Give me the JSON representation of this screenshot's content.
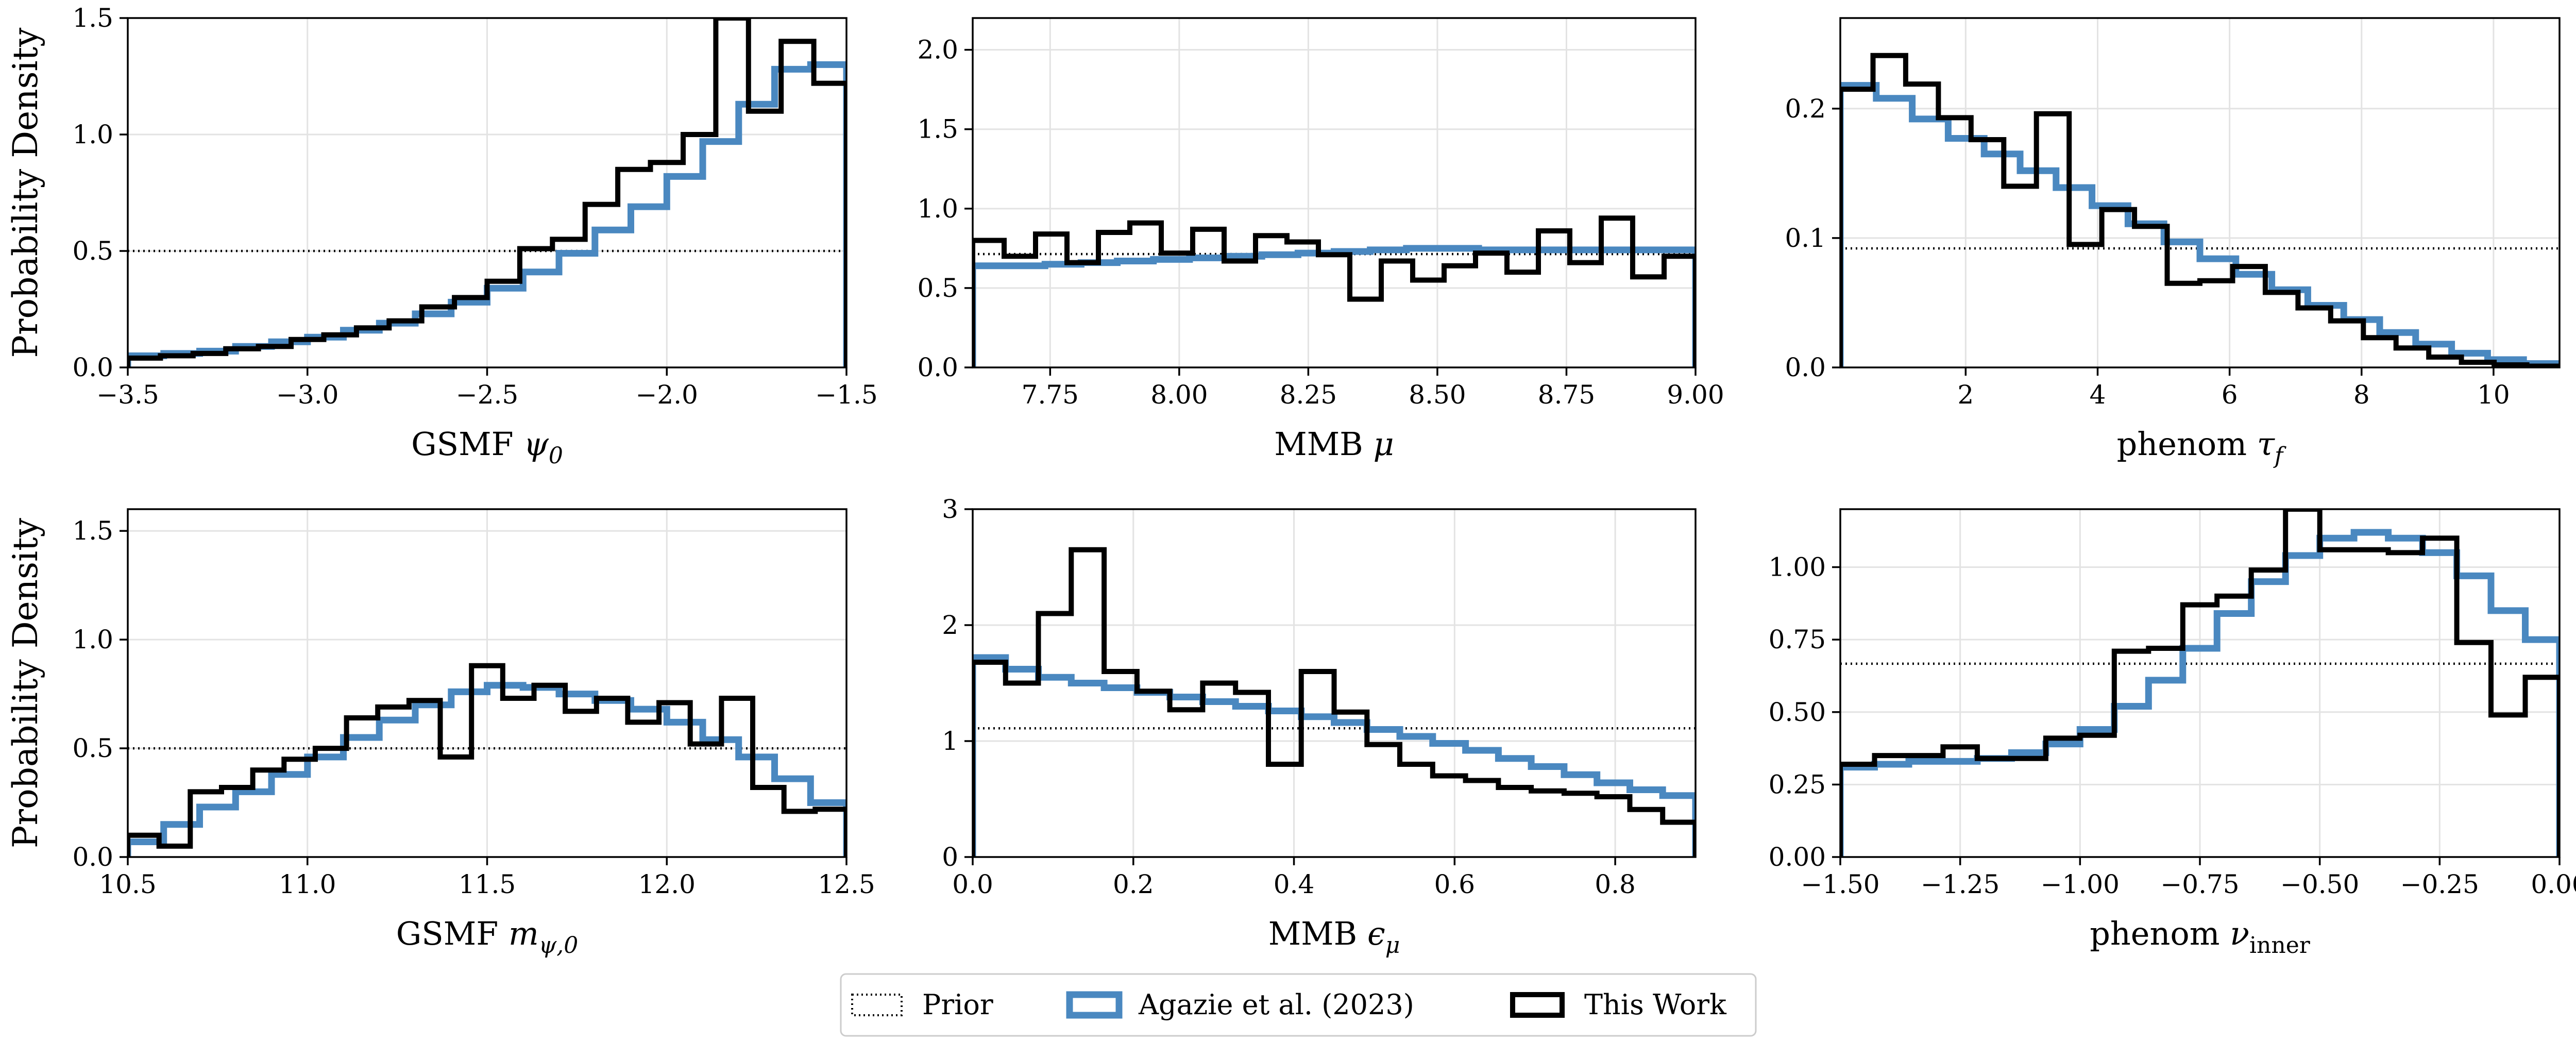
{
  "figure": {
    "ylabel": "Probability Density",
    "colors": {
      "prior": "#000000",
      "agazie": "#4a88c0",
      "thiswork": "#000000"
    }
  },
  "legend": {
    "placement": "bottom-center",
    "items": [
      {
        "label": "Prior",
        "style": "dotted"
      },
      {
        "label": "Agazie et al. (2023)",
        "color": "#4a88c0"
      },
      {
        "label": "This Work",
        "color": "#000000"
      }
    ]
  },
  "chart_data": [
    {
      "type": "histogram",
      "xlabel": "GSMF ψ0",
      "xlabel_base": "GSMF ",
      "xlabel_sym": "ψ",
      "xlabel_sub": "0",
      "ylabel": "Probability Density",
      "xlim": [
        -3.5,
        -1.5
      ],
      "ylim": [
        0,
        1.5
      ],
      "xticks": [
        -3.5,
        -3.0,
        -2.5,
        -2.0,
        -1.5
      ],
      "xtick_labels": [
        "−3.5",
        "−3.0",
        "−2.5",
        "−2.0",
        "−1.5"
      ],
      "yticks": [
        0,
        0.5,
        1.0,
        1.5
      ],
      "ytick_labels": [
        "0.0",
        "0.5",
        "1.0",
        "1.5"
      ],
      "prior": 0.5,
      "series": [
        {
          "name": "Agazie et al. (2023)",
          "edges": [
            -3.5,
            -1.5
          ],
          "values": [
            0.05,
            0.06,
            0.07,
            0.09,
            0.11,
            0.13,
            0.16,
            0.19,
            0.23,
            0.28,
            0.34,
            0.41,
            0.49,
            0.59,
            0.69,
            0.82,
            0.97,
            1.13,
            1.28,
            1.3
          ]
        },
        {
          "name": "This Work",
          "edges": [
            -3.5,
            -1.5
          ],
          "values": [
            0.04,
            0.05,
            0.06,
            0.08,
            0.09,
            0.12,
            0.14,
            0.17,
            0.2,
            0.26,
            0.3,
            0.37,
            0.51,
            0.55,
            0.7,
            0.85,
            0.88,
            1.0,
            1.5,
            1.1,
            1.4,
            1.22
          ]
        }
      ]
    },
    {
      "type": "histogram",
      "xlabel": "MMB μ",
      "xlabel_base": "MMB ",
      "xlabel_sym": "μ",
      "xlabel_sub": "",
      "ylabel": "",
      "xlim": [
        7.6,
        9.0
      ],
      "ylim": [
        0,
        2.2
      ],
      "xticks": [
        7.75,
        8.0,
        8.25,
        8.5,
        8.75,
        9.0
      ],
      "xtick_labels": [
        "7.75",
        "8.00",
        "8.25",
        "8.50",
        "8.75",
        "9.00"
      ],
      "yticks": [
        0,
        0.5,
        1.0,
        1.5,
        2.0
      ],
      "ytick_labels": [
        "0.0",
        "0.5",
        "1.0",
        "1.5",
        "2.0"
      ],
      "prior": 0.714,
      "series": [
        {
          "name": "Agazie et al. (2023)",
          "edges": [
            7.6,
            9.0
          ],
          "values": [
            0.64,
            0.64,
            0.65,
            0.66,
            0.67,
            0.68,
            0.69,
            0.7,
            0.71,
            0.72,
            0.73,
            0.74,
            0.75,
            0.75,
            0.74,
            0.74,
            0.74,
            0.74,
            0.74,
            0.74
          ]
        },
        {
          "name": "This Work",
          "edges": [
            7.6,
            9.0
          ],
          "values": [
            0.8,
            0.7,
            0.84,
            0.66,
            0.85,
            0.91,
            0.72,
            0.87,
            0.67,
            0.83,
            0.79,
            0.71,
            0.43,
            0.67,
            0.55,
            0.64,
            0.72,
            0.6,
            0.86,
            0.66,
            0.94,
            0.57,
            0.7
          ]
        }
      ]
    },
    {
      "type": "histogram",
      "xlabel": "phenom τf",
      "xlabel_base": "phenom ",
      "xlabel_sym": "τ",
      "xlabel_sub": "f",
      "ylabel": "",
      "xlim": [
        0.1,
        11.0
      ],
      "ylim": [
        0,
        0.27
      ],
      "xticks": [
        2,
        4,
        6,
        8,
        10
      ],
      "xtick_labels": [
        "2",
        "4",
        "6",
        "8",
        "10"
      ],
      "yticks": [
        0,
        0.1,
        0.2
      ],
      "ytick_labels": [
        "0.0",
        "0.1",
        "0.2"
      ],
      "prior": 0.092,
      "series": [
        {
          "name": "Agazie et al. (2023)",
          "edges": [
            0.1,
            11.0
          ],
          "values": [
            0.218,
            0.208,
            0.192,
            0.177,
            0.165,
            0.152,
            0.139,
            0.125,
            0.111,
            0.097,
            0.084,
            0.072,
            0.06,
            0.048,
            0.037,
            0.027,
            0.018,
            0.011,
            0.006,
            0.003
          ]
        },
        {
          "name": "This Work",
          "edges": [
            0.1,
            11.0
          ],
          "values": [
            0.215,
            0.241,
            0.219,
            0.193,
            0.176,
            0.14,
            0.196,
            0.095,
            0.122,
            0.109,
            0.065,
            0.067,
            0.078,
            0.058,
            0.046,
            0.036,
            0.023,
            0.015,
            0.008,
            0.004,
            0.002,
            0.001
          ]
        }
      ]
    },
    {
      "type": "histogram",
      "xlabel": "GSMF mψ,0",
      "xlabel_base": "GSMF ",
      "xlabel_sym": "m",
      "xlabel_sub": "ψ,0",
      "ylabel": "Probability Density",
      "xlim": [
        10.5,
        12.5
      ],
      "ylim": [
        0,
        1.6
      ],
      "xticks": [
        10.5,
        11.0,
        11.5,
        12.0,
        12.5
      ],
      "xtick_labels": [
        "10.5",
        "11.0",
        "11.5",
        "12.0",
        "12.5"
      ],
      "yticks": [
        0,
        0.5,
        1.0,
        1.5
      ],
      "ytick_labels": [
        "0.0",
        "0.5",
        "1.0",
        "1.5"
      ],
      "prior": 0.5,
      "series": [
        {
          "name": "Agazie et al. (2023)",
          "edges": [
            10.5,
            12.5
          ],
          "values": [
            0.07,
            0.15,
            0.23,
            0.3,
            0.38,
            0.46,
            0.55,
            0.63,
            0.7,
            0.76,
            0.79,
            0.78,
            0.75,
            0.72,
            0.68,
            0.62,
            0.54,
            0.46,
            0.36,
            0.25
          ]
        },
        {
          "name": "This Work",
          "edges": [
            10.5,
            12.5
          ],
          "values": [
            0.1,
            0.05,
            0.3,
            0.32,
            0.4,
            0.45,
            0.5,
            0.64,
            0.69,
            0.72,
            0.46,
            0.88,
            0.73,
            0.79,
            0.67,
            0.73,
            0.62,
            0.71,
            0.52,
            0.73,
            0.32,
            0.21,
            0.22
          ]
        }
      ]
    },
    {
      "type": "histogram",
      "xlabel": "MMB εμ",
      "xlabel_base": "MMB ",
      "xlabel_sym": "ϵ",
      "xlabel_sub": "μ",
      "ylabel": "",
      "xlim": [
        0.0,
        0.9
      ],
      "ylim": [
        0,
        3.0
      ],
      "xticks": [
        0.0,
        0.2,
        0.4,
        0.6,
        0.8
      ],
      "xtick_labels": [
        "0.0",
        "0.2",
        "0.4",
        "0.6",
        "0.8"
      ],
      "yticks": [
        0,
        1,
        2,
        3
      ],
      "ytick_labels": [
        "0",
        "1",
        "2",
        "3"
      ],
      "prior": 1.11,
      "series": [
        {
          "name": "Agazie et al. (2023)",
          "edges": [
            0.0,
            0.9
          ],
          "values": [
            1.72,
            1.62,
            1.55,
            1.5,
            1.46,
            1.42,
            1.38,
            1.34,
            1.3,
            1.26,
            1.21,
            1.16,
            1.1,
            1.04,
            0.98,
            0.92,
            0.85,
            0.78,
            0.71,
            0.64,
            0.58,
            0.53
          ]
        },
        {
          "name": "This Work",
          "edges": [
            0.0,
            0.9
          ],
          "values": [
            1.68,
            1.5,
            2.1,
            2.65,
            1.6,
            1.43,
            1.27,
            1.5,
            1.42,
            0.8,
            1.6,
            1.25,
            0.97,
            0.8,
            0.7,
            0.66,
            0.6,
            0.57,
            0.55,
            0.52,
            0.41,
            0.3
          ]
        }
      ]
    },
    {
      "type": "histogram",
      "xlabel": "phenom νinner",
      "xlabel_base": "phenom ",
      "xlabel_sym": "ν",
      "xlabel_sub": "inner",
      "ylabel": "",
      "xlim": [
        -1.5,
        0.0
      ],
      "ylim": [
        0,
        1.2
      ],
      "xticks": [
        -1.5,
        -1.25,
        -1.0,
        -0.75,
        -0.5,
        -0.25,
        0.0
      ],
      "xtick_labels": [
        "−1.50",
        "−1.25",
        "−1.00",
        "−0.75",
        "−0.50",
        "−0.25",
        "0.00"
      ],
      "yticks": [
        0,
        0.25,
        0.5,
        0.75,
        1.0
      ],
      "ytick_labels": [
        "0.00",
        "0.25",
        "0.50",
        "0.75",
        "1.00"
      ],
      "prior": 0.667,
      "series": [
        {
          "name": "Agazie et al. (2023)",
          "edges": [
            -1.5,
            0.0
          ],
          "values": [
            0.31,
            0.32,
            0.33,
            0.33,
            0.34,
            0.36,
            0.39,
            0.44,
            0.52,
            0.61,
            0.72,
            0.84,
            0.95,
            1.04,
            1.1,
            1.12,
            1.1,
            1.05,
            0.97,
            0.85,
            0.75
          ]
        },
        {
          "name": "This Work",
          "edges": [
            -1.5,
            0.0
          ],
          "values": [
            0.32,
            0.35,
            0.35,
            0.38,
            0.34,
            0.34,
            0.41,
            0.42,
            0.71,
            0.72,
            0.87,
            0.9,
            0.99,
            1.2,
            1.06,
            1.06,
            1.05,
            1.1,
            0.74,
            0.49,
            0.62
          ]
        }
      ]
    }
  ]
}
